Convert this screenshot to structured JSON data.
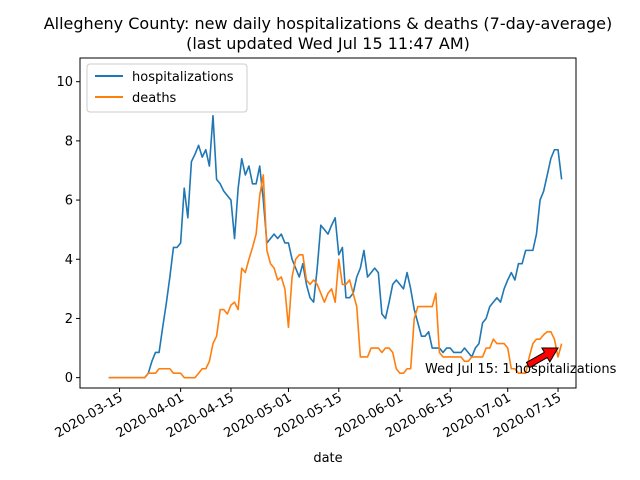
{
  "chart_data": {
    "type": "line",
    "title": "Allegheny County: new daily hospitalizations & deaths (7-day-average)",
    "subtitle": "(last updated Wed Jul 15 11:47 AM)",
    "xlabel": "date",
    "ylabel": "",
    "ylim": [
      -0.35,
      10.8
    ],
    "xlim": [
      "2020-03-04",
      "2020-07-20"
    ],
    "x_ticks": [
      "2020-03-15",
      "2020-04-01",
      "2020-04-15",
      "2020-05-01",
      "2020-05-15",
      "2020-06-01",
      "2020-06-15",
      "2020-07-01",
      "2020-07-15"
    ],
    "y_ticks": [
      0,
      2,
      4,
      6,
      8,
      10
    ],
    "grid": false,
    "legend_position": "upper-left",
    "annotation": {
      "text": "Wed Jul 15: 1 hospitalizations",
      "point": {
        "x": "2020-07-15",
        "y": 1.0
      },
      "text_anchor": {
        "x": "2020-06-08",
        "y": 0.15
      },
      "arrow_color": "#ff0000"
    },
    "series": [
      {
        "name": "hospitalizations",
        "color": "#1f77b4",
        "points": [
          [
            "2020-03-12",
            0
          ],
          [
            "2020-03-22",
            0
          ],
          [
            "2020-03-23",
            0.15
          ],
          [
            "2020-03-24",
            0.55
          ],
          [
            "2020-03-25",
            0.85
          ],
          [
            "2020-03-26",
            0.85
          ],
          [
            "2020-03-27",
            1.7
          ],
          [
            "2020-03-28",
            2.5
          ],
          [
            "2020-03-29",
            3.4
          ],
          [
            "2020-03-30",
            4.4
          ],
          [
            "2020-03-31",
            4.4
          ],
          [
            "2020-04-01",
            4.55
          ],
          [
            "2020-04-02",
            6.4
          ],
          [
            "2020-04-03",
            5.4
          ],
          [
            "2020-04-04",
            7.3
          ],
          [
            "2020-04-05",
            7.55
          ],
          [
            "2020-04-06",
            7.85
          ],
          [
            "2020-04-07",
            7.45
          ],
          [
            "2020-04-08",
            7.7
          ],
          [
            "2020-04-09",
            7.15
          ],
          [
            "2020-04-10",
            8.85
          ],
          [
            "2020-04-11",
            6.7
          ],
          [
            "2020-04-12",
            6.55
          ],
          [
            "2020-04-13",
            6.3
          ],
          [
            "2020-04-14",
            6.15
          ],
          [
            "2020-04-15",
            6.0
          ],
          [
            "2020-04-16",
            4.7
          ],
          [
            "2020-04-17",
            6.4
          ],
          [
            "2020-04-18",
            7.4
          ],
          [
            "2020-04-19",
            6.85
          ],
          [
            "2020-04-20",
            7.15
          ],
          [
            "2020-04-21",
            6.55
          ],
          [
            "2020-04-22",
            6.55
          ],
          [
            "2020-04-23",
            7.15
          ],
          [
            "2020-04-24",
            6.0
          ],
          [
            "2020-04-25",
            4.55
          ],
          [
            "2020-04-26",
            4.7
          ],
          [
            "2020-04-27",
            4.85
          ],
          [
            "2020-04-28",
            4.7
          ],
          [
            "2020-04-29",
            4.85
          ],
          [
            "2020-04-30",
            4.55
          ],
          [
            "2020-05-01",
            4.55
          ],
          [
            "2020-05-02",
            4.0
          ],
          [
            "2020-05-03",
            3.7
          ],
          [
            "2020-05-04",
            3.4
          ],
          [
            "2020-05-05",
            3.85
          ],
          [
            "2020-05-06",
            3.15
          ],
          [
            "2020-05-07",
            2.7
          ],
          [
            "2020-05-08",
            2.55
          ],
          [
            "2020-05-09",
            3.7
          ],
          [
            "2020-05-10",
            5.15
          ],
          [
            "2020-05-11",
            5.0
          ],
          [
            "2020-05-12",
            4.85
          ],
          [
            "2020-05-13",
            5.15
          ],
          [
            "2020-05-14",
            5.4
          ],
          [
            "2020-05-15",
            4.15
          ],
          [
            "2020-05-16",
            4.4
          ],
          [
            "2020-05-17",
            2.7
          ],
          [
            "2020-05-18",
            2.7
          ],
          [
            "2020-05-19",
            2.85
          ],
          [
            "2020-05-20",
            3.4
          ],
          [
            "2020-05-21",
            3.7
          ],
          [
            "2020-05-22",
            4.3
          ],
          [
            "2020-05-23",
            3.4
          ],
          [
            "2020-05-24",
            3.55
          ],
          [
            "2020-05-25",
            3.7
          ],
          [
            "2020-05-26",
            3.55
          ],
          [
            "2020-05-27",
            2.15
          ],
          [
            "2020-05-28",
            2.0
          ],
          [
            "2020-05-29",
            2.55
          ],
          [
            "2020-05-30",
            3.15
          ],
          [
            "2020-05-31",
            3.3
          ],
          [
            "2020-06-01",
            3.15
          ],
          [
            "2020-06-02",
            3.0
          ],
          [
            "2020-06-03",
            3.55
          ],
          [
            "2020-06-04",
            3.0
          ],
          [
            "2020-06-05",
            2.3
          ],
          [
            "2020-06-06",
            1.85
          ],
          [
            "2020-06-07",
            1.4
          ],
          [
            "2020-06-08",
            1.4
          ],
          [
            "2020-06-09",
            1.55
          ],
          [
            "2020-06-10",
            1.0
          ],
          [
            "2020-06-11",
            1.0
          ],
          [
            "2020-06-12",
            1.0
          ],
          [
            "2020-06-13",
            0.85
          ],
          [
            "2020-06-14",
            1.0
          ],
          [
            "2020-06-15",
            1.0
          ],
          [
            "2020-06-16",
            0.85
          ],
          [
            "2020-06-17",
            0.85
          ],
          [
            "2020-06-18",
            0.85
          ],
          [
            "2020-06-19",
            1.0
          ],
          [
            "2020-06-20",
            0.85
          ],
          [
            "2020-06-21",
            0.7
          ],
          [
            "2020-06-22",
            1.0
          ],
          [
            "2020-06-23",
            1.15
          ],
          [
            "2020-06-24",
            1.85
          ],
          [
            "2020-06-25",
            2.0
          ],
          [
            "2020-06-26",
            2.4
          ],
          [
            "2020-06-27",
            2.55
          ],
          [
            "2020-06-28",
            2.7
          ],
          [
            "2020-06-29",
            2.55
          ],
          [
            "2020-06-30",
            3.0
          ],
          [
            "2020-07-01",
            3.3
          ],
          [
            "2020-07-02",
            3.55
          ],
          [
            "2020-07-03",
            3.3
          ],
          [
            "2020-07-04",
            3.85
          ],
          [
            "2020-07-05",
            3.85
          ],
          [
            "2020-07-06",
            4.3
          ],
          [
            "2020-07-07",
            4.3
          ],
          [
            "2020-07-08",
            4.3
          ],
          [
            "2020-07-09",
            4.85
          ],
          [
            "2020-07-10",
            6.0
          ],
          [
            "2020-07-11",
            6.3
          ],
          [
            "2020-07-12",
            6.85
          ],
          [
            "2020-07-13",
            7.4
          ],
          [
            "2020-07-14",
            7.7
          ],
          [
            "2020-07-15",
            7.7
          ],
          [
            "2020-07-16",
            6.7
          ]
        ]
      },
      {
        "name": "deaths",
        "color": "#ff7f0e",
        "points": [
          [
            "2020-03-12",
            0
          ],
          [
            "2020-03-22",
            0
          ],
          [
            "2020-03-23",
            0.15
          ],
          [
            "2020-03-24",
            0.15
          ],
          [
            "2020-03-25",
            0.15
          ],
          [
            "2020-03-26",
            0.3
          ],
          [
            "2020-03-27",
            0.3
          ],
          [
            "2020-03-28",
            0.3
          ],
          [
            "2020-03-29",
            0.3
          ],
          [
            "2020-03-30",
            0.15
          ],
          [
            "2020-03-31",
            0.15
          ],
          [
            "2020-04-01",
            0.15
          ],
          [
            "2020-04-02",
            0.0
          ],
          [
            "2020-04-03",
            0.0
          ],
          [
            "2020-04-04",
            0.0
          ],
          [
            "2020-04-05",
            0.0
          ],
          [
            "2020-04-06",
            0.15
          ],
          [
            "2020-04-07",
            0.3
          ],
          [
            "2020-04-08",
            0.3
          ],
          [
            "2020-04-09",
            0.55
          ],
          [
            "2020-04-10",
            1.15
          ],
          [
            "2020-04-11",
            1.4
          ],
          [
            "2020-04-12",
            2.3
          ],
          [
            "2020-04-13",
            2.3
          ],
          [
            "2020-04-14",
            2.15
          ],
          [
            "2020-04-15",
            2.45
          ],
          [
            "2020-04-16",
            2.55
          ],
          [
            "2020-04-17",
            2.3
          ],
          [
            "2020-04-18",
            3.7
          ],
          [
            "2020-04-19",
            3.55
          ],
          [
            "2020-04-20",
            4.0
          ],
          [
            "2020-04-21",
            4.4
          ],
          [
            "2020-04-22",
            4.85
          ],
          [
            "2020-04-23",
            6.15
          ],
          [
            "2020-04-24",
            6.85
          ],
          [
            "2020-04-25",
            4.3
          ],
          [
            "2020-04-26",
            3.85
          ],
          [
            "2020-04-27",
            3.7
          ],
          [
            "2020-04-28",
            3.3
          ],
          [
            "2020-04-29",
            3.4
          ],
          [
            "2020-04-30",
            3.0
          ],
          [
            "2020-05-01",
            1.7
          ],
          [
            "2020-05-02",
            3.4
          ],
          [
            "2020-05-03",
            4.0
          ],
          [
            "2020-05-04",
            4.15
          ],
          [
            "2020-05-05",
            4.15
          ],
          [
            "2020-05-06",
            3.3
          ],
          [
            "2020-05-07",
            3.15
          ],
          [
            "2020-05-08",
            3.3
          ],
          [
            "2020-05-09",
            3.15
          ],
          [
            "2020-05-10",
            2.85
          ],
          [
            "2020-05-11",
            2.55
          ],
          [
            "2020-05-12",
            2.85
          ],
          [
            "2020-05-13",
            3.0
          ],
          [
            "2020-05-14",
            2.55
          ],
          [
            "2020-05-15",
            4.0
          ],
          [
            "2020-05-16",
            3.15
          ],
          [
            "2020-05-17",
            3.15
          ],
          [
            "2020-05-18",
            3.3
          ],
          [
            "2020-05-19",
            2.85
          ],
          [
            "2020-05-20",
            2.4
          ],
          [
            "2020-05-21",
            0.7
          ],
          [
            "2020-05-22",
            0.7
          ],
          [
            "2020-05-23",
            0.7
          ],
          [
            "2020-05-24",
            1.0
          ],
          [
            "2020-05-25",
            1.0
          ],
          [
            "2020-05-26",
            1.0
          ],
          [
            "2020-05-27",
            0.85
          ],
          [
            "2020-05-28",
            1.0
          ],
          [
            "2020-05-29",
            1.0
          ],
          [
            "2020-05-30",
            0.85
          ],
          [
            "2020-05-31",
            0.3
          ],
          [
            "2020-06-01",
            0.15
          ],
          [
            "2020-06-02",
            0.15
          ],
          [
            "2020-06-03",
            0.3
          ],
          [
            "2020-06-04",
            0.3
          ],
          [
            "2020-06-05",
            2.0
          ],
          [
            "2020-06-06",
            2.4
          ],
          [
            "2020-06-07",
            2.4
          ],
          [
            "2020-06-08",
            2.4
          ],
          [
            "2020-06-09",
            2.4
          ],
          [
            "2020-06-10",
            2.4
          ],
          [
            "2020-06-11",
            2.85
          ],
          [
            "2020-06-12",
            0.85
          ],
          [
            "2020-06-13",
            0.7
          ],
          [
            "2020-06-14",
            0.7
          ],
          [
            "2020-06-15",
            0.7
          ],
          [
            "2020-06-16",
            0.7
          ],
          [
            "2020-06-17",
            0.7
          ],
          [
            "2020-06-18",
            0.7
          ],
          [
            "2020-06-19",
            0.55
          ],
          [
            "2020-06-20",
            0.55
          ],
          [
            "2020-06-21",
            0.7
          ],
          [
            "2020-06-22",
            0.7
          ],
          [
            "2020-06-23",
            0.7
          ],
          [
            "2020-06-24",
            0.7
          ],
          [
            "2020-06-25",
            1.0
          ],
          [
            "2020-06-26",
            1.0
          ],
          [
            "2020-06-27",
            1.3
          ],
          [
            "2020-06-28",
            1.15
          ],
          [
            "2020-06-29",
            1.15
          ],
          [
            "2020-06-30",
            1.15
          ],
          [
            "2020-07-01",
            1.0
          ],
          [
            "2020-07-02",
            0.3
          ],
          [
            "2020-07-03",
            0.3
          ],
          [
            "2020-07-04",
            0.15
          ],
          [
            "2020-07-05",
            0.15
          ],
          [
            "2020-07-06",
            0.15
          ],
          [
            "2020-07-07",
            0.7
          ],
          [
            "2020-07-08",
            1.15
          ],
          [
            "2020-07-09",
            1.3
          ],
          [
            "2020-07-10",
            1.3
          ],
          [
            "2020-07-11",
            1.45
          ],
          [
            "2020-07-12",
            1.55
          ],
          [
            "2020-07-13",
            1.55
          ],
          [
            "2020-07-14",
            1.3
          ],
          [
            "2020-07-15",
            0.7
          ],
          [
            "2020-07-16",
            1.15
          ]
        ]
      }
    ]
  }
}
